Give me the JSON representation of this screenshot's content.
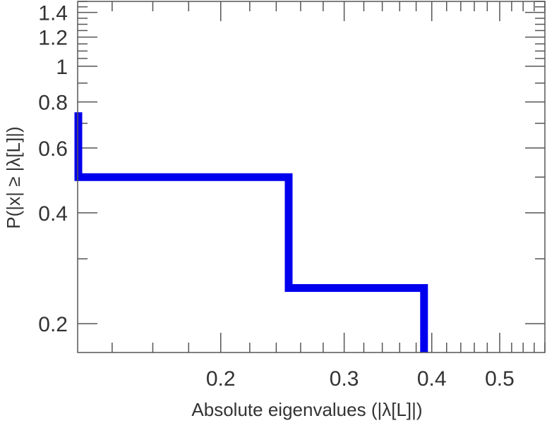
{
  "chart_data": {
    "type": "line",
    "xlabel": "Absolute eigenvalues (|λ[L]|)",
    "ylabel": "P(|x| ≥ |λ[L]|)",
    "xscale": "log",
    "yscale": "log",
    "xlim": [
      0.125,
      0.58
    ],
    "ylim": [
      0.167,
      1.5
    ],
    "x_ticks": [
      {
        "value": 0.2,
        "label": "0.2"
      },
      {
        "value": 0.3,
        "label": "0.3"
      },
      {
        "value": 0.4,
        "label": "0.4"
      },
      {
        "value": 0.5,
        "label": "0.5"
      }
    ],
    "y_ticks": [
      {
        "value": 0.2,
        "label": "0.2"
      },
      {
        "value": 0.4,
        "label": "0.4"
      },
      {
        "value": 0.6,
        "label": "0.6"
      },
      {
        "value": 0.8,
        "label": "0.8"
      },
      {
        "value": 1.0,
        "label": "1"
      },
      {
        "value": 1.2,
        "label": "1.2"
      },
      {
        "value": 1.4,
        "label": "1.4"
      }
    ],
    "series": [
      {
        "color": "#0000ee",
        "style": "step",
        "points": [
          {
            "x": 0.125,
            "y": 0.75
          },
          {
            "x": 0.125,
            "y": 0.5
          },
          {
            "x": 0.25,
            "y": 0.5
          },
          {
            "x": 0.25,
            "y": 0.25
          },
          {
            "x": 0.39,
            "y": 0.25
          },
          {
            "x": 0.39,
            "y": 0.167
          }
        ]
      }
    ],
    "grid": false
  }
}
